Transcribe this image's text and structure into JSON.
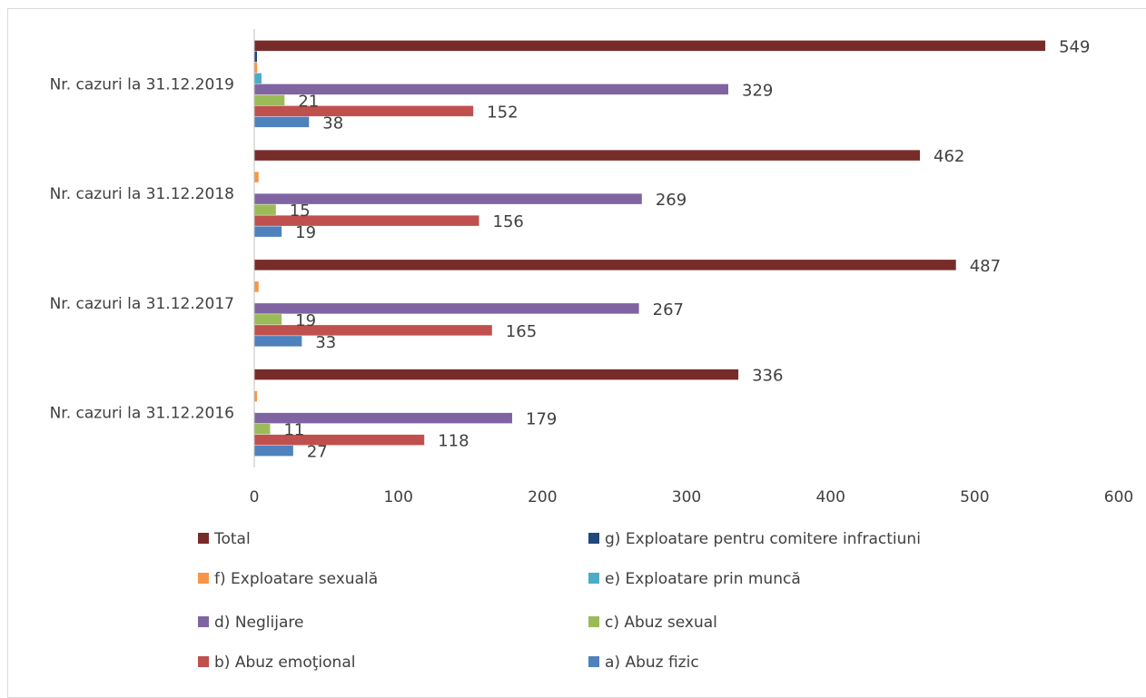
{
  "chart_data": {
    "type": "bar",
    "orientation": "horizontal",
    "categories": [
      "Nr. cazuri la 31.12.2016",
      "Nr. cazuri la 31.12.2017",
      "Nr. cazuri la 31.12.2018",
      "Nr. cazuri la 31.12.2019"
    ],
    "series": [
      {
        "name": "a) Abuz  fizic",
        "color": "#4f81bd",
        "values": [
          27,
          33,
          19,
          38
        ],
        "labels": [
          "27",
          "33",
          "19",
          "38"
        ]
      },
      {
        "name": "b) Abuz emoţional",
        "color": "#c0504d",
        "values": [
          118,
          165,
          156,
          152
        ],
        "labels": [
          "118",
          "165",
          "156",
          "152"
        ]
      },
      {
        "name": "c) Abuz sexual",
        "color": "#9bbb59",
        "values": [
          11,
          19,
          15,
          21
        ],
        "labels": [
          "11",
          "19",
          "15",
          "21"
        ]
      },
      {
        "name": "d) Neglijare",
        "color": "#8064a2",
        "values": [
          179,
          267,
          269,
          329
        ],
        "labels": [
          "179",
          "267",
          "269",
          "329"
        ]
      },
      {
        "name": "e) Exploatare prin muncă",
        "color": "#4bacc6",
        "values": [
          0,
          0,
          0,
          5
        ],
        "labels": null
      },
      {
        "name": "f) Exploatare sexuală",
        "color": "#f79646",
        "values": [
          1,
          3,
          3,
          2
        ],
        "labels": null
      },
      {
        "name": "g) Exploatare pentru comitere infractiuni",
        "color": "#1f497d",
        "values": [
          0,
          0,
          0,
          1
        ],
        "labels": null
      },
      {
        "name": "Total",
        "color": "#772c2a",
        "values": [
          336,
          487,
          462,
          549
        ],
        "labels": [
          "336",
          "487",
          "462",
          "549"
        ]
      }
    ],
    "xlim": [
      0,
      600
    ],
    "xticks": [
      "0",
      "100",
      "200",
      "300",
      "400",
      "500",
      "600"
    ],
    "grid": false,
    "legend_position": "bottom",
    "legend": [
      [
        "Total",
        "g) Exploatare pentru comitere infractiuni"
      ],
      [
        "f) Exploatare sexuală",
        "e) Exploatare prin muncă"
      ],
      [
        "d) Neglijare",
        "c) Abuz sexual"
      ],
      [
        "b) Abuz emoţional",
        "a) Abuz  fizic"
      ]
    ]
  }
}
